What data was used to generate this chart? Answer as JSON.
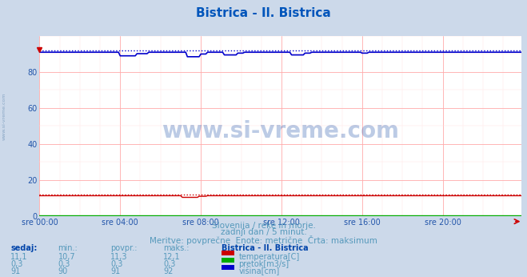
{
  "title": "Bistrica - Il. Bistrica",
  "title_color": "#0055bb",
  "bg_color": "#ccd9ea",
  "plot_bg_color": "#ffffff",
  "grid_color_major": "#ffaaaa",
  "grid_color_minor": "#ffe0e0",
  "xlabel_color": "#2255aa",
  "ylabel_color": "#2255aa",
  "xticklabels": [
    "sre 00:00",
    "sre 04:00",
    "sre 08:00",
    "sre 12:00",
    "sre 16:00",
    "sre 20:00"
  ],
  "xtick_positions": [
    0,
    48,
    96,
    144,
    192,
    240
  ],
  "ylim": [
    0,
    100
  ],
  "yticks": [
    0,
    20,
    40,
    60,
    80
  ],
  "total_points": 288,
  "temperature_value": 11.3,
  "temperature_max": 12.1,
  "temperature_color": "#cc0000",
  "flow_value": 0.3,
  "flow_color": "#00aa00",
  "height_value": 91,
  "height_max": 92,
  "height_color": "#0000cc",
  "subtitle1": "Slovenija / reke in morje.",
  "subtitle2": "zadnji dan / 5 minut.",
  "subtitle3": "Meritve: povprečne  Enote: metrične  Črta: maksimum",
  "subtitle_color": "#5599bb",
  "legend_title": "Bistrica - Il. Bistrica",
  "legend_labels": [
    "temperatura[C]",
    "pretok[m3/s]",
    "višina[cm]"
  ],
  "legend_colors": [
    "#cc0000",
    "#00aa00",
    "#0000cc"
  ],
  "table_headers": [
    "sedaj:",
    "min.:",
    "povpr.:",
    "maks.:"
  ],
  "table_color": "#5599bb",
  "table_bold_color": "#0044aa",
  "table_data": [
    [
      "11,1",
      "10,7",
      "11,3",
      "12,1"
    ],
    [
      "0,3",
      "0,3",
      "0,3",
      "0,3"
    ],
    [
      "91",
      "90",
      "91",
      "92"
    ]
  ],
  "watermark": "www.si-vreme.com",
  "watermark_color": "#2255aa",
  "watermark_alpha": 0.3,
  "left_label": "www.si-vreme.com",
  "left_label_color": "#7799bb"
}
